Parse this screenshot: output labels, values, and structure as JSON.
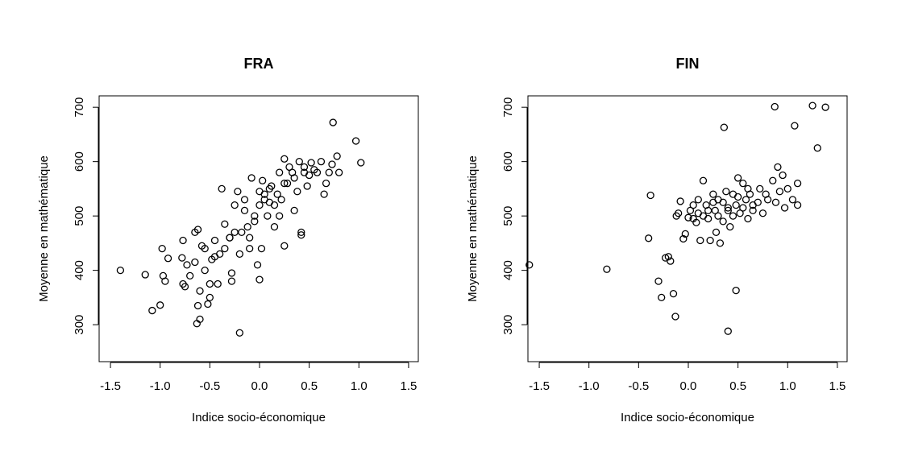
{
  "chart_data": [
    {
      "type": "scatter",
      "title": "FRA",
      "x_label": "Indice socio-économique",
      "y_label": "Moyenne en mathématique",
      "xlim": [
        -1.614,
        1.598
      ],
      "ylim": [
        232,
        721
      ],
      "xticks": [
        -1.5,
        {
          "value": -1,
          "label": "-1.0"
        },
        -0.5,
        {
          "value": 0,
          "label": "0.0"
        },
        0.5,
        {
          "value": 1,
          "label": "1.0"
        },
        1.5
      ],
      "yticks": [
        300,
        400,
        500,
        600,
        700
      ],
      "color": "#000000",
      "x": [
        -1.4,
        -1.15,
        -1.08,
        -1.0,
        -0.98,
        -0.97,
        -0.95,
        -0.92,
        -0.78,
        -0.77,
        -0.77,
        -0.75,
        -0.73,
        -0.7,
        -0.65,
        -0.62,
        -0.63,
        -0.6,
        -0.62,
        -0.6,
        -0.58,
        -0.55,
        -0.52,
        -0.5,
        -0.5,
        -0.48,
        -0.45,
        -0.42,
        -0.4,
        -0.38,
        -0.35,
        -0.3,
        -0.28,
        -0.28,
        -0.25,
        -0.22,
        -0.2,
        -0.2,
        -0.18,
        -0.15,
        -0.12,
        -0.1,
        -0.08,
        -0.05,
        -0.02,
        0.0,
        0.0,
        0.02,
        0.03,
        0.05,
        0.08,
        0.1,
        0.12,
        0.15,
        0.18,
        0.2,
        0.22,
        0.25,
        0.25,
        0.28,
        0.3,
        0.33,
        0.35,
        0.38,
        0.4,
        0.42,
        0.42,
        0.45,
        0.48,
        0.5,
        0.52,
        0.55,
        0.58,
        0.62,
        0.65,
        0.67,
        0.7,
        0.73,
        0.74,
        0.78,
        0.8,
        0.97,
        1.02,
        -0.45,
        -0.35,
        -0.25,
        -0.15,
        -0.05,
        0.05,
        0.15,
        0.25,
        0.35,
        -0.55,
        -0.65,
        -0.3,
        0.1,
        0.2,
        0.45,
        -0.1,
        0.0
      ],
      "values": [
        400,
        392,
        326,
        336,
        440,
        390,
        380,
        422,
        423,
        455,
        375,
        370,
        410,
        390,
        470,
        475,
        302,
        310,
        335,
        362,
        445,
        440,
        338,
        350,
        375,
        420,
        455,
        375,
        430,
        550,
        485,
        460,
        395,
        380,
        520,
        545,
        430,
        285,
        470,
        530,
        480,
        440,
        570,
        500,
        410,
        383,
        520,
        440,
        565,
        540,
        500,
        525,
        555,
        480,
        540,
        580,
        530,
        605,
        445,
        560,
        590,
        580,
        510,
        545,
        600,
        465,
        470,
        590,
        555,
        575,
        598,
        585,
        580,
        600,
        540,
        560,
        580,
        595,
        672,
        610,
        580,
        638,
        598,
        425,
        440,
        470,
        510,
        490,
        530,
        520,
        560,
        570,
        400,
        415,
        460,
        550,
        500,
        580,
        460,
        545
      ]
    },
    {
      "type": "scatter",
      "title": "FIN",
      "x_label": "Indice socio-économique",
      "y_label": "Moyenne en mathématique",
      "xlim": [
        -1.614,
        1.598
      ],
      "ylim": [
        232,
        721
      ],
      "xticks": [
        -1.5,
        {
          "value": -1,
          "label": "-1.0"
        },
        -0.5,
        {
          "value": 0,
          "label": "0.0"
        },
        0.5,
        {
          "value": 1,
          "label": "1.0"
        },
        1.5
      ],
      "yticks": [
        300,
        400,
        500,
        600,
        700
      ],
      "color": "#000000",
      "x": [
        -1.6,
        -0.82,
        -0.38,
        -0.4,
        -0.3,
        -0.27,
        -0.23,
        -0.2,
        -0.18,
        -0.15,
        -0.13,
        -0.12,
        -0.1,
        -0.08,
        -0.05,
        -0.03,
        0.0,
        0.02,
        0.05,
        0.08,
        0.1,
        0.12,
        0.15,
        0.15,
        0.18,
        0.2,
        0.22,
        0.25,
        0.27,
        0.28,
        0.3,
        0.32,
        0.35,
        0.36,
        0.38,
        0.4,
        0.4,
        0.42,
        0.45,
        0.48,
        0.48,
        0.5,
        0.52,
        0.55,
        0.58,
        0.6,
        0.62,
        0.65,
        0.7,
        0.72,
        0.75,
        0.78,
        0.8,
        0.85,
        0.87,
        0.88,
        0.9,
        0.92,
        0.95,
        0.97,
        1.0,
        1.05,
        1.07,
        1.1,
        1.1,
        1.25,
        1.3,
        1.38,
        0.3,
        0.45,
        0.55,
        0.2,
        0.6,
        0.35,
        0.5,
        0.1,
        0.65,
        0.25,
        0.4,
        0.05
      ],
      "values": [
        410,
        402,
        538,
        459,
        380,
        350,
        423,
        425,
        417,
        357,
        315,
        500,
        505,
        527,
        458,
        467,
        497,
        510,
        520,
        488,
        530,
        455,
        565,
        500,
        520,
        495,
        455,
        540,
        510,
        470,
        500,
        450,
        525,
        663,
        545,
        288,
        510,
        480,
        540,
        363,
        520,
        570,
        505,
        560,
        530,
        495,
        540,
        510,
        525,
        550,
        505,
        540,
        530,
        565,
        701,
        525,
        590,
        545,
        575,
        515,
        550,
        530,
        666,
        560,
        520,
        703,
        625,
        700,
        530,
        500,
        515,
        510,
        550,
        490,
        535,
        505,
        520,
        525,
        515,
        495
      ]
    }
  ]
}
